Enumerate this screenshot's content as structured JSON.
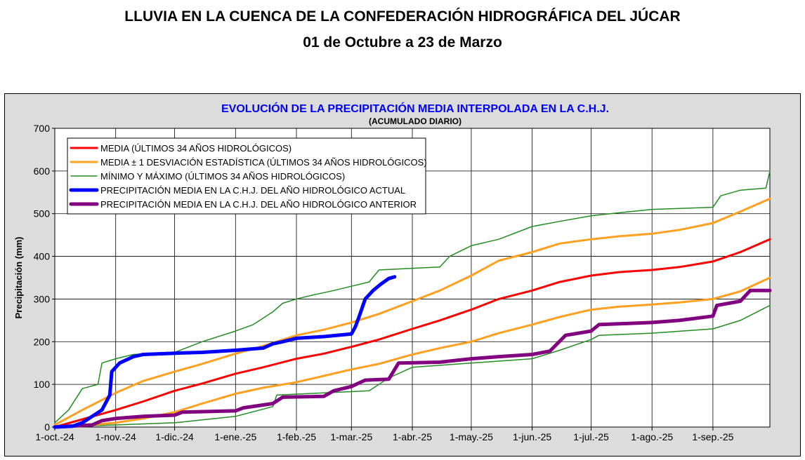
{
  "page": {
    "title": "LLUVIA EN LA CUENCA DE LA CONFEDERACIÓN HIDROGRÁFICA DEL JÚCAR",
    "subtitle": "01 de Octubre a 23 de Marzo"
  },
  "chart_data": {
    "type": "line",
    "title": "EVOLUCIÓN DE LA PRECIPITACIÓN MEDIA INTERPOLADA EN LA C.H.J.",
    "subtitle": "(ACUMULADO DIARIO)",
    "ylabel": "Precipitación (mm)",
    "xlabel": "",
    "ylim": [
      0,
      700
    ],
    "xlim": [
      "2024-10-01",
      "2025-09-30"
    ],
    "yticks": [
      0,
      100,
      200,
      300,
      400,
      500,
      600,
      700
    ],
    "xticks": [
      {
        "date": "2024-10-01",
        "label": "1-oct.-24"
      },
      {
        "date": "2024-11-01",
        "label": "1-nov.-24"
      },
      {
        "date": "2024-12-01",
        "label": "1-dic.-24"
      },
      {
        "date": "2025-01-01",
        "label": "1-ene.-25"
      },
      {
        "date": "2025-02-01",
        "label": "1-feb.-25"
      },
      {
        "date": "2025-03-01",
        "label": "1-mar.-25"
      },
      {
        "date": "2025-04-01",
        "label": "1-abr.-25"
      },
      {
        "date": "2025-05-01",
        "label": "1-may.-25"
      },
      {
        "date": "2025-06-01",
        "label": "1-jun.-25"
      },
      {
        "date": "2025-07-01",
        "label": "1-jul.-25"
      },
      {
        "date": "2025-08-01",
        "label": "1-ago.-25"
      },
      {
        "date": "2025-09-01",
        "label": "1-sep.-25"
      }
    ],
    "grid": true,
    "legend_position": "top-left",
    "background": "#ffffff",
    "frame_background": "#e0e0e0",
    "series": [
      {
        "key": "media",
        "name": "MEDIA (ÚLTIMOS 34 AÑOS HIDROLÓGICOS)",
        "color": "#ff0000",
        "width": 3,
        "points": [
          [
            "2024-10-01",
            0
          ],
          [
            "2024-10-15",
            18
          ],
          [
            "2024-11-01",
            40
          ],
          [
            "2024-11-15",
            60
          ],
          [
            "2024-12-01",
            85
          ],
          [
            "2024-12-15",
            102
          ],
          [
            "2025-01-01",
            125
          ],
          [
            "2025-01-15",
            140
          ],
          [
            "2025-02-01",
            160
          ],
          [
            "2025-02-15",
            172
          ],
          [
            "2025-03-01",
            188
          ],
          [
            "2025-03-15",
            205
          ],
          [
            "2025-04-01",
            230
          ],
          [
            "2025-04-15",
            250
          ],
          [
            "2025-05-01",
            275
          ],
          [
            "2025-05-15",
            300
          ],
          [
            "2025-06-01",
            320
          ],
          [
            "2025-06-15",
            340
          ],
          [
            "2025-07-01",
            355
          ],
          [
            "2025-07-15",
            363
          ],
          [
            "2025-08-01",
            368
          ],
          [
            "2025-08-15",
            375
          ],
          [
            "2025-09-01",
            388
          ],
          [
            "2025-09-15",
            410
          ],
          [
            "2025-09-30",
            440
          ]
        ]
      },
      {
        "key": "media_mas_sd",
        "name": "MEDIA ± 1 DESVIACIÓN ESTADÍSTICA (ÚLTIMOS 34 AÑOS HIDROLÓGICOS)",
        "color": "#ffa020",
        "width": 3,
        "points": [
          [
            "2024-10-01",
            5
          ],
          [
            "2024-10-15",
            40
          ],
          [
            "2024-11-01",
            80
          ],
          [
            "2024-11-15",
            108
          ],
          [
            "2024-12-01",
            130
          ],
          [
            "2024-12-15",
            148
          ],
          [
            "2025-01-01",
            172
          ],
          [
            "2025-01-15",
            190
          ],
          [
            "2025-02-01",
            215
          ],
          [
            "2025-02-15",
            228
          ],
          [
            "2025-03-01",
            245
          ],
          [
            "2025-03-15",
            265
          ],
          [
            "2025-04-01",
            295
          ],
          [
            "2025-04-15",
            320
          ],
          [
            "2025-05-01",
            355
          ],
          [
            "2025-05-15",
            390
          ],
          [
            "2025-06-01",
            410
          ],
          [
            "2025-06-15",
            430
          ],
          [
            "2025-07-01",
            440
          ],
          [
            "2025-07-15",
            447
          ],
          [
            "2025-08-01",
            453
          ],
          [
            "2025-08-15",
            462
          ],
          [
            "2025-09-01",
            478
          ],
          [
            "2025-09-15",
            505
          ],
          [
            "2025-09-30",
            535
          ]
        ]
      },
      {
        "key": "media_menos_sd",
        "name": "",
        "color": "#ffa020",
        "width": 3,
        "points": [
          [
            "2024-10-01",
            0
          ],
          [
            "2024-10-15",
            3
          ],
          [
            "2024-11-01",
            10
          ],
          [
            "2024-11-15",
            20
          ],
          [
            "2024-12-01",
            35
          ],
          [
            "2024-12-15",
            55
          ],
          [
            "2025-01-01",
            78
          ],
          [
            "2025-01-15",
            92
          ],
          [
            "2025-02-01",
            105
          ],
          [
            "2025-02-15",
            120
          ],
          [
            "2025-03-01",
            135
          ],
          [
            "2025-03-15",
            148
          ],
          [
            "2025-04-01",
            170
          ],
          [
            "2025-04-15",
            185
          ],
          [
            "2025-05-01",
            200
          ],
          [
            "2025-05-15",
            220
          ],
          [
            "2025-06-01",
            240
          ],
          [
            "2025-06-15",
            258
          ],
          [
            "2025-07-01",
            275
          ],
          [
            "2025-07-15",
            282
          ],
          [
            "2025-08-01",
            287
          ],
          [
            "2025-08-15",
            292
          ],
          [
            "2025-09-01",
            300
          ],
          [
            "2025-09-15",
            318
          ],
          [
            "2025-09-30",
            350
          ]
        ]
      },
      {
        "key": "maximo",
        "name": "MÍNIMO Y MÁXIMO (ÚLTIMOS 34 AÑOS HIDROLÓGICOS)",
        "color": "#228b22",
        "width": 1.5,
        "points": [
          [
            "2024-10-01",
            10
          ],
          [
            "2024-10-08",
            40
          ],
          [
            "2024-10-15",
            90
          ],
          [
            "2024-10-23",
            100
          ],
          [
            "2024-10-25",
            150
          ],
          [
            "2024-11-01",
            160
          ],
          [
            "2024-11-10",
            170
          ],
          [
            "2024-12-01",
            175
          ],
          [
            "2024-12-15",
            200
          ],
          [
            "2025-01-01",
            225
          ],
          [
            "2025-01-10",
            240
          ],
          [
            "2025-01-20",
            270
          ],
          [
            "2025-01-25",
            290
          ],
          [
            "2025-02-01",
            300
          ],
          [
            "2025-02-10",
            310
          ],
          [
            "2025-02-20",
            320
          ],
          [
            "2025-03-01",
            330
          ],
          [
            "2025-03-10",
            340
          ],
          [
            "2025-03-15",
            368
          ],
          [
            "2025-04-01",
            372
          ],
          [
            "2025-04-15",
            375
          ],
          [
            "2025-04-20",
            400
          ],
          [
            "2025-05-01",
            425
          ],
          [
            "2025-05-15",
            440
          ],
          [
            "2025-06-01",
            470
          ],
          [
            "2025-06-15",
            482
          ],
          [
            "2025-07-01",
            495
          ],
          [
            "2025-07-15",
            502
          ],
          [
            "2025-08-01",
            510
          ],
          [
            "2025-09-01",
            515
          ],
          [
            "2025-09-05",
            542
          ],
          [
            "2025-09-15",
            555
          ],
          [
            "2025-09-28",
            560
          ],
          [
            "2025-09-30",
            600
          ]
        ]
      },
      {
        "key": "minimo",
        "name": "",
        "color": "#228b22",
        "width": 1.5,
        "points": [
          [
            "2024-10-01",
            0
          ],
          [
            "2024-11-01",
            5
          ],
          [
            "2024-12-01",
            10
          ],
          [
            "2025-01-01",
            25
          ],
          [
            "2025-01-20",
            48
          ],
          [
            "2025-01-22",
            75
          ],
          [
            "2025-02-15",
            80
          ],
          [
            "2025-03-10",
            85
          ],
          [
            "2025-03-20",
            115
          ],
          [
            "2025-04-01",
            140
          ],
          [
            "2025-05-01",
            150
          ],
          [
            "2025-06-01",
            160
          ],
          [
            "2025-06-15",
            180
          ],
          [
            "2025-07-01",
            205
          ],
          [
            "2025-07-05",
            215
          ],
          [
            "2025-08-01",
            220
          ],
          [
            "2025-09-01",
            230
          ],
          [
            "2025-09-15",
            250
          ],
          [
            "2025-09-30",
            285
          ]
        ]
      },
      {
        "key": "actual",
        "name": "PRECIPITACIÓN MEDIA EN LA C.H.J. DEL AÑO HIDROLÓGICO ACTUAL",
        "color": "#0000ff",
        "width": 5,
        "points": [
          [
            "2024-10-01",
            0
          ],
          [
            "2024-10-10",
            2
          ],
          [
            "2024-10-15",
            10
          ],
          [
            "2024-10-20",
            25
          ],
          [
            "2024-10-25",
            40
          ],
          [
            "2024-10-29",
            75
          ],
          [
            "2024-10-30",
            130
          ],
          [
            "2024-11-01",
            140
          ],
          [
            "2024-11-03",
            150
          ],
          [
            "2024-11-10",
            165
          ],
          [
            "2024-11-15",
            170
          ],
          [
            "2024-12-01",
            173
          ],
          [
            "2024-12-15",
            175
          ],
          [
            "2025-01-01",
            180
          ],
          [
            "2025-01-15",
            185
          ],
          [
            "2025-01-20",
            195
          ],
          [
            "2025-01-25",
            200
          ],
          [
            "2025-02-01",
            208
          ],
          [
            "2025-02-15",
            212
          ],
          [
            "2025-03-01",
            218
          ],
          [
            "2025-03-03",
            235
          ],
          [
            "2025-03-05",
            260
          ],
          [
            "2025-03-08",
            300
          ],
          [
            "2025-03-12",
            320
          ],
          [
            "2025-03-16",
            335
          ],
          [
            "2025-03-20",
            348
          ],
          [
            "2025-03-23",
            352
          ]
        ]
      },
      {
        "key": "anterior",
        "name": "PRECIPITACIÓN MEDIA EN LA C.H.J. DEL AÑO HIDROLÓGICO ANTERIOR",
        "color": "#800080",
        "width": 5,
        "points": [
          [
            "2024-10-01",
            0
          ],
          [
            "2024-10-20",
            5
          ],
          [
            "2024-10-25",
            15
          ],
          [
            "2024-11-01",
            20
          ],
          [
            "2024-11-15",
            25
          ],
          [
            "2024-12-01",
            28
          ],
          [
            "2024-12-05",
            35
          ],
          [
            "2025-01-01",
            38
          ],
          [
            "2025-01-05",
            45
          ],
          [
            "2025-01-20",
            55
          ],
          [
            "2025-01-25",
            70
          ],
          [
            "2025-02-15",
            72
          ],
          [
            "2025-02-20",
            85
          ],
          [
            "2025-03-01",
            95
          ],
          [
            "2025-03-08",
            110
          ],
          [
            "2025-03-20",
            112
          ],
          [
            "2025-03-25",
            150
          ],
          [
            "2025-04-15",
            152
          ],
          [
            "2025-05-01",
            160
          ],
          [
            "2025-05-15",
            165
          ],
          [
            "2025-06-01",
            170
          ],
          [
            "2025-06-10",
            178
          ],
          [
            "2025-06-18",
            215
          ],
          [
            "2025-07-01",
            225
          ],
          [
            "2025-07-05",
            240
          ],
          [
            "2025-08-01",
            245
          ],
          [
            "2025-08-15",
            250
          ],
          [
            "2025-09-01",
            260
          ],
          [
            "2025-09-03",
            285
          ],
          [
            "2025-09-15",
            295
          ],
          [
            "2025-09-20",
            320
          ],
          [
            "2025-09-30",
            320
          ]
        ]
      }
    ]
  }
}
